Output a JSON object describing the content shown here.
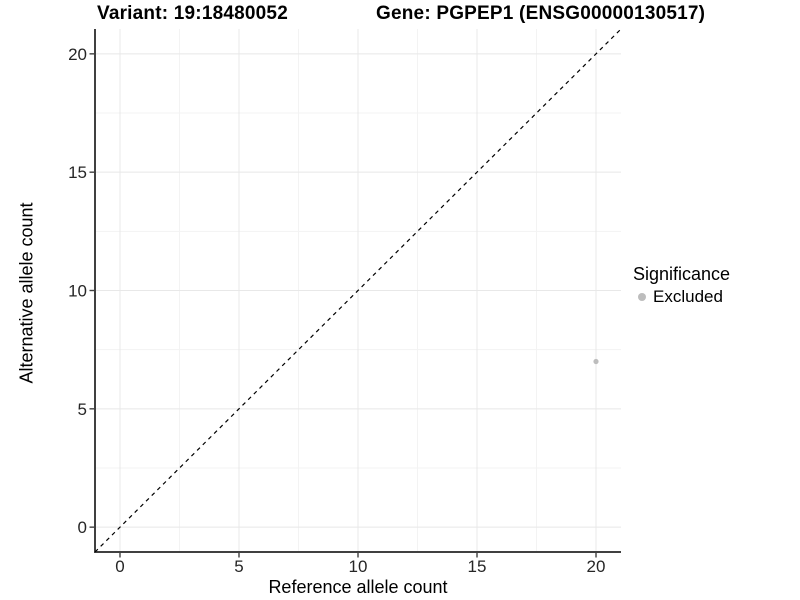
{
  "header": {
    "variant_title": "Variant: 19:18480052",
    "gene_title": "Gene: PGPEP1 (ENSG00000130517)"
  },
  "chart_data": {
    "type": "scatter",
    "xlabel": "Reference allele count",
    "ylabel": "Alternative allele count",
    "xlim": [
      -1.05,
      21.05
    ],
    "ylim": [
      -1.05,
      21.05
    ],
    "x_ticks": [
      0,
      5,
      10,
      15,
      20
    ],
    "y_ticks": [
      0,
      5,
      10,
      15,
      20
    ],
    "x_minor_ticks": [
      2.5,
      7.5,
      12.5,
      17.5
    ],
    "y_minor_ticks": [
      2.5,
      7.5,
      12.5,
      17.5
    ],
    "grid": true,
    "reference_line": {
      "type": "identity",
      "slope": 1,
      "intercept": 0,
      "style": "dashed",
      "color": "#000000"
    },
    "series": [
      {
        "name": "Excluded",
        "color": "#bdbdbd",
        "points": [
          {
            "x": 20,
            "y": 7
          }
        ]
      }
    ],
    "legend": {
      "title": "Significance",
      "position": "right",
      "entries": [
        {
          "label": "Excluded",
          "color": "#bdbdbd"
        }
      ]
    }
  },
  "colors": {
    "background": "#ffffff",
    "axis_line": "#404040",
    "tick_mark": "#404040",
    "tick_label": "#262626",
    "grid_major": "#e8e8e8",
    "grid_minor": "#f3f3f3"
  }
}
